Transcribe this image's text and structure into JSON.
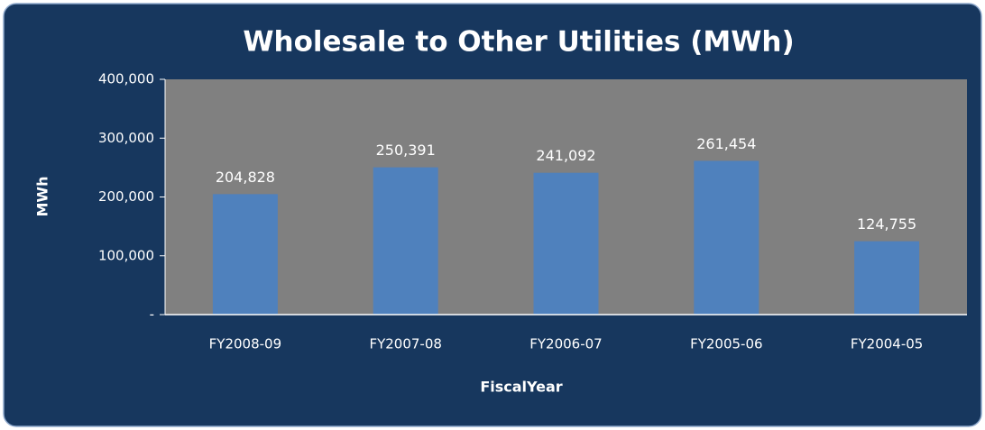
{
  "chart_data": {
    "type": "bar",
    "title": "Wholesale to Other Utilities (MWh)",
    "x_label": "FiscalYear",
    "y_label": "MWh",
    "categories": [
      "FY2008-09",
      "FY2007-08",
      "FY2006-07",
      "FY2005-06",
      "FY2004-05"
    ],
    "values": [
      204828,
      250391,
      241092,
      261454,
      124755
    ],
    "value_labels": [
      "204,828",
      "250,391",
      "241,092",
      "261,454",
      "124,755"
    ],
    "color": "#4f81bd",
    "ylim": [
      0,
      400000
    ],
    "yticks": [
      {
        "value": 0,
        "label": "-"
      },
      {
        "value": 100000,
        "label": "100,000"
      },
      {
        "value": 200000,
        "label": "200,000"
      },
      {
        "value": 300000,
        "label": "300,000"
      },
      {
        "value": 400000,
        "label": "400,000"
      }
    ],
    "grid": false
  }
}
